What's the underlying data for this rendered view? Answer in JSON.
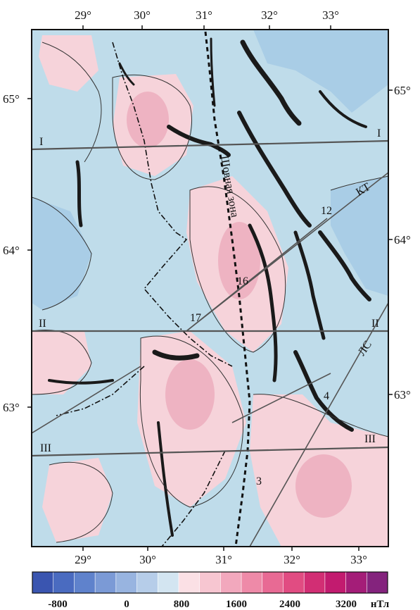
{
  "lon_ticks": [
    "29°",
    "30°",
    "31°",
    "32°",
    "33°"
  ],
  "lat_ticks": [
    "65°",
    "64°",
    "63°"
  ],
  "profiles": [
    {
      "id": "profile-i",
      "left": "I",
      "right": "I"
    },
    {
      "id": "profile-ii",
      "left": "II",
      "right": "II"
    },
    {
      "id": "profile-iii",
      "left": "III",
      "right": "III"
    }
  ],
  "labels": {
    "zone": "Шовная зона",
    "kt": "КТ",
    "ls": "ЛС",
    "n12": "12",
    "n16": "16",
    "n17": "17",
    "n3": "3",
    "n4": "4"
  },
  "legend": {
    "colors": [
      "#3a55b0",
      "#4a6bc0",
      "#5f82cc",
      "#7b9ad6",
      "#98b4e0",
      "#b6cde9",
      "#d3e5f1",
      "#fbe0e5",
      "#f7c6d1",
      "#f2a8bd",
      "#ee8aa8",
      "#e86a94",
      "#e14c82",
      "#d22e74",
      "#c21b6f",
      "#a41d78",
      "#84237d"
    ],
    "labels": [
      "-800",
      "0",
      "800",
      "1600",
      "2400",
      "3200"
    ],
    "unit": "нТл"
  },
  "fill_colors": {
    "negative": "#bfdcea",
    "deep_negative": "#a9cde6",
    "positive": "#f6d3da",
    "strong_positive": "#eeb3c2"
  }
}
